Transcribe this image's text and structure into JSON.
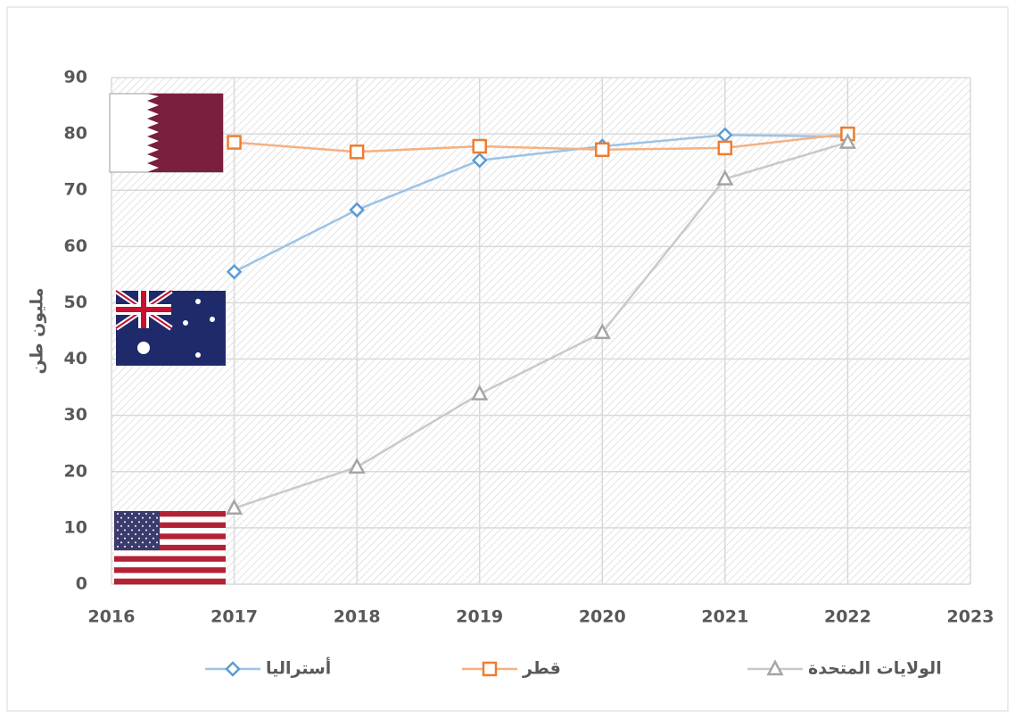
{
  "chart_data": {
    "type": "line",
    "ylabel": "مليون طن",
    "x": [
      2017,
      2018,
      2019,
      2020,
      2021,
      2022
    ],
    "xlim": [
      2016,
      2023
    ],
    "xticks": [
      2016,
      2017,
      2018,
      2019,
      2020,
      2021,
      2022,
      2023
    ],
    "ylim": [
      0,
      90
    ],
    "yticks": [
      0,
      10,
      20,
      30,
      40,
      50,
      60,
      70,
      80,
      90
    ],
    "grid": true,
    "legend": "bottom",
    "series": [
      {
        "name": "أستراليا",
        "color": "#5b9bd5",
        "line_color": "#9dc3e6",
        "marker": "diamond",
        "values": [
          55.5,
          66.5,
          75.3,
          77.8,
          79.8,
          79.5
        ]
      },
      {
        "name": "قطر",
        "color": "#ed7d31",
        "line_color": "#f4b183",
        "marker": "square",
        "values": [
          78.5,
          76.8,
          77.8,
          77.2,
          77.5,
          80
        ]
      },
      {
        "name": "الولايات المتحدة",
        "color": "#a5a5a5",
        "line_color": "#c9c9c9",
        "marker": "triangle",
        "values": [
          13.5,
          20.8,
          33.8,
          44.7,
          72,
          78.5
        ]
      }
    ]
  }
}
